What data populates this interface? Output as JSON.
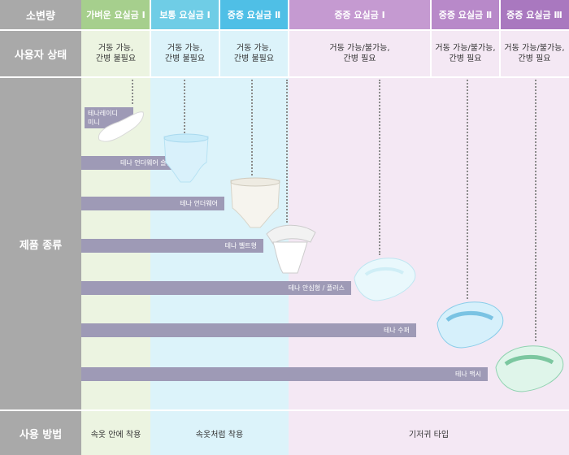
{
  "headers": {
    "row1": "소변량",
    "row2": "사용자 상태",
    "row3": "제품 종류",
    "row4": "사용 방법"
  },
  "incontinence_levels": [
    {
      "label": "가벼운 요실금 Ⅰ",
      "color": "#a6cf8d"
    },
    {
      "label": "보통 요실금 Ⅰ",
      "color": "#6fcde6"
    },
    {
      "label": "중증 요실금 Ⅱ",
      "color": "#4fbfe6"
    },
    {
      "label": "중증 요실금 Ⅰ",
      "color": "#c59ad1"
    },
    {
      "label": "중증 요실금 Ⅱ",
      "color": "#b889c9"
    },
    {
      "label": "중증 요실금 Ⅲ",
      "color": "#a978bf"
    }
  ],
  "user_status": [
    "거동 가능,\n간병 불필요",
    "거동 가능,\n간병 불필요",
    "거동 가능,\n간병 불필요",
    "거동 가능/불가능,\n간병 필요",
    "거동 가능/불가능,\n간병 필요",
    "거동 가능/불가능,\n간병 필요"
  ],
  "products": [
    {
      "label": "테나레이디\n미니"
    },
    {
      "label": "테나 언더웨어 슬림"
    },
    {
      "label": "테나 언더웨어"
    },
    {
      "label": "테나 벨트형"
    },
    {
      "label": "테나 안심형 / 플러스"
    },
    {
      "label": "테나 수퍼"
    },
    {
      "label": "테나 맥시"
    }
  ],
  "usage_methods": [
    "속옷 안에 착용",
    "속옷처럼 착용",
    "기저귀 타입"
  ],
  "colors": {
    "header_gray": "#a9a9a9",
    "bar_purple": "#9e9ab6",
    "green_tint": "#ecf4e1",
    "blue_tint": "#dcf3fa",
    "purple_tint": "#f4e8f4"
  }
}
